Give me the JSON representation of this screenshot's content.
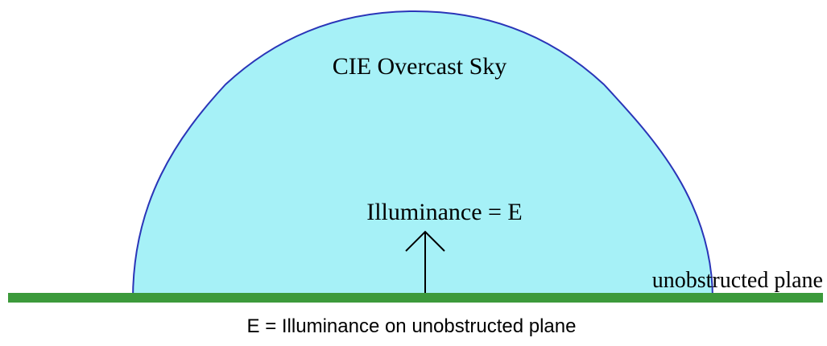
{
  "sky_label": "CIE Overcast Sky",
  "illuminance_label": "Illuminance = E",
  "plane_label": "unobstructed plane",
  "caption": "E = Illuminance on unobstructed plane"
}
